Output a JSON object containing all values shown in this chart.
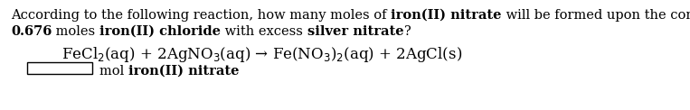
{
  "background_color": "#ffffff",
  "line1_parts": [
    [
      "According to the following reaction, how many moles of ",
      false
    ],
    [
      "iron(II) nitrate",
      true
    ],
    [
      " will be formed upon the complete reaction of",
      false
    ]
  ],
  "line2_parts": [
    [
      "0.676",
      true
    ],
    [
      " moles ",
      false
    ],
    [
      "iron(II) chloride",
      true
    ],
    [
      " with excess ",
      false
    ],
    [
      "silver nitrate",
      true
    ],
    [
      "?",
      false
    ]
  ],
  "equation": "FeCl$_2$(aq) + 2AgNO$_3$(aq) → Fe(NO$_3$)$_2$(aq) + 2AgCl(s)",
  "answer_normal": "mol ",
  "answer_bold": "iron(II) nitrate",
  "font_size": 10.5,
  "eq_font_size": 12,
  "fig_width": 7.63,
  "fig_height": 1.22,
  "dpi": 100
}
